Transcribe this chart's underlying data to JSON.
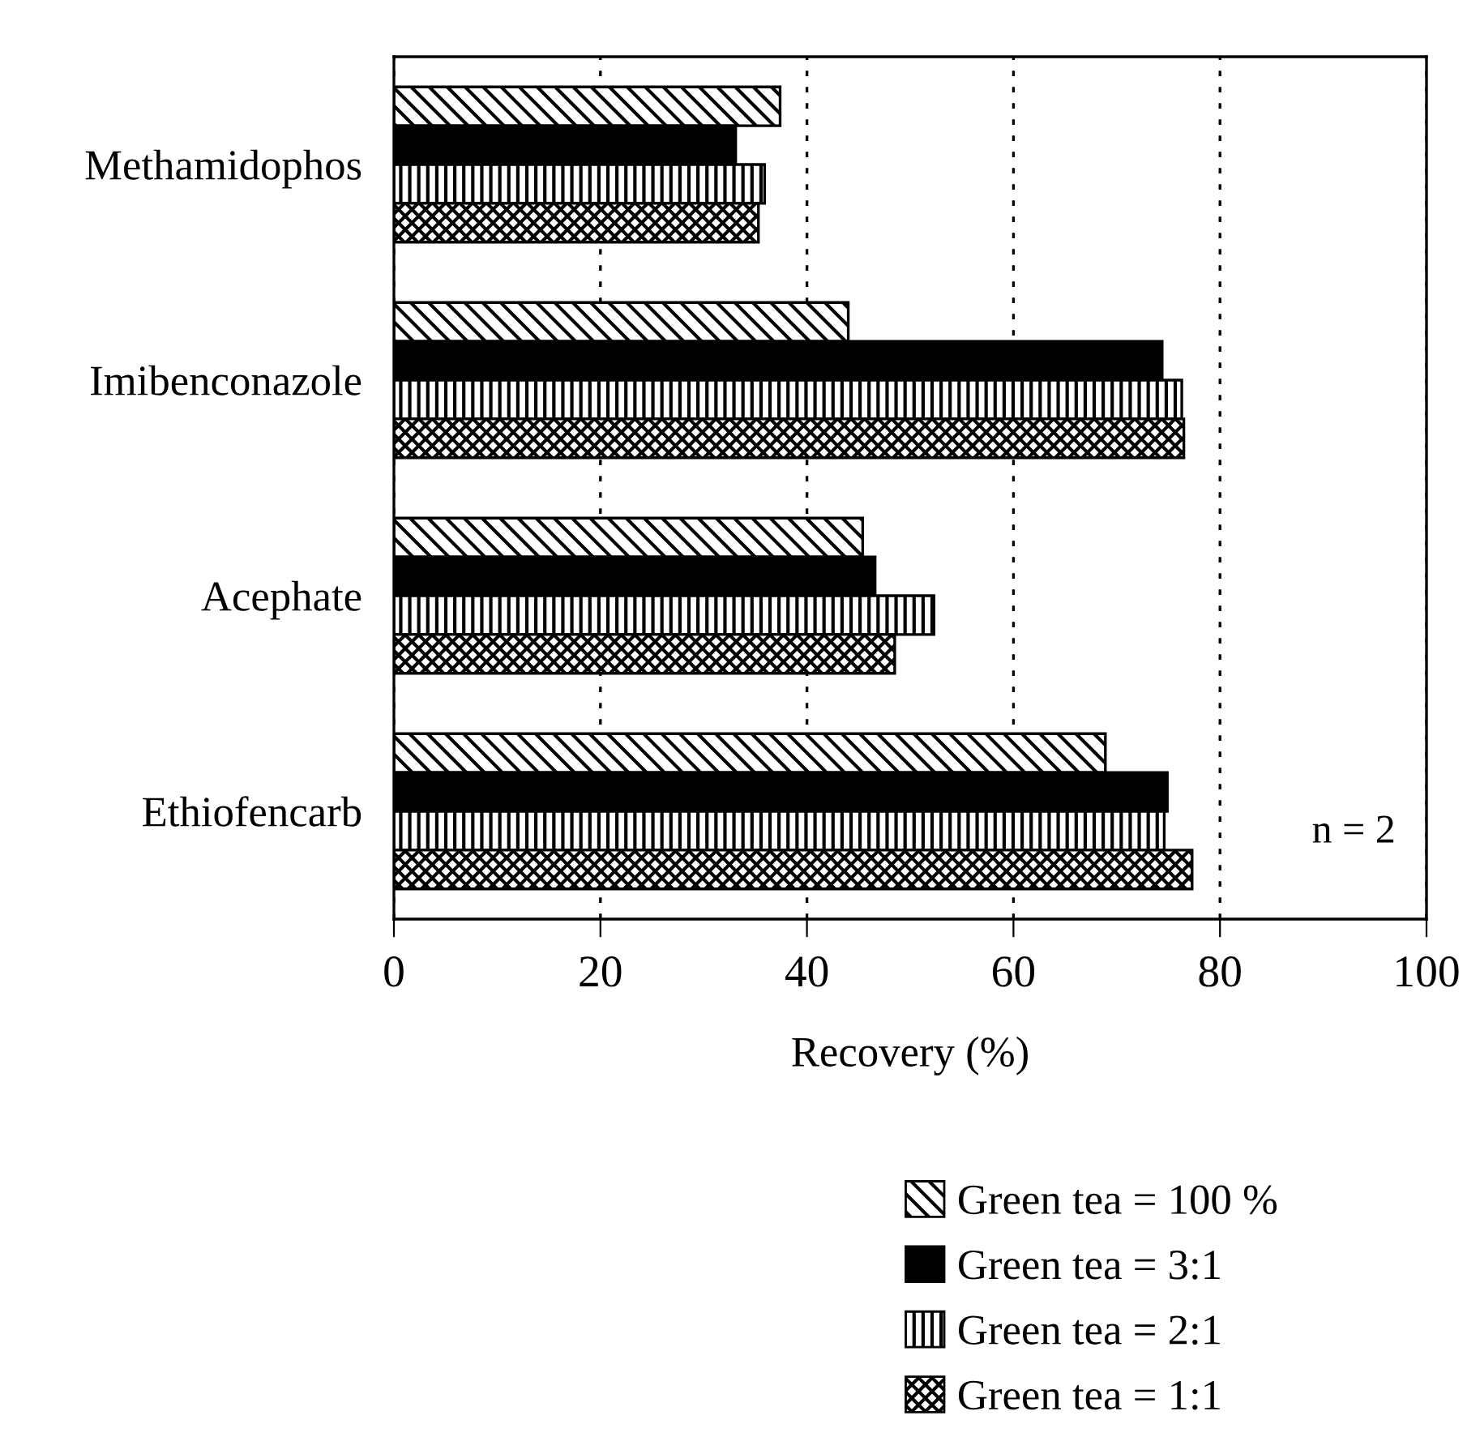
{
  "chart_data": {
    "type": "bar",
    "orientation": "horizontal",
    "xlabel": "Recovery (%)",
    "categories": [
      "Methamidophos",
      "Imibenconazole",
      "Acephate",
      "Ethiofencarb"
    ],
    "series": [
      {
        "name": "Green tea = 100 %",
        "color": "#000000",
        "values": [
          37.4,
          44.0,
          45.4,
          68.9
        ]
      },
      {
        "name": "Green tea = 3:1",
        "color": "#000000",
        "values": [
          33.1,
          74.4,
          46.6,
          74.9
        ]
      },
      {
        "name": "Green tea = 2:1",
        "color": "#000000",
        "values": [
          35.9,
          76.3,
          52.3,
          74.6
        ]
      },
      {
        "name": "Green tea = 1:1",
        "color": "#000000",
        "values": [
          35.3,
          76.5,
          48.5,
          77.3
        ]
      }
    ],
    "xlim": [
      0,
      100
    ],
    "xticks": [
      0,
      20,
      40,
      60,
      80,
      100
    ],
    "grid": "x",
    "legend": "bottom",
    "annotations": [
      "n = 2"
    ]
  }
}
